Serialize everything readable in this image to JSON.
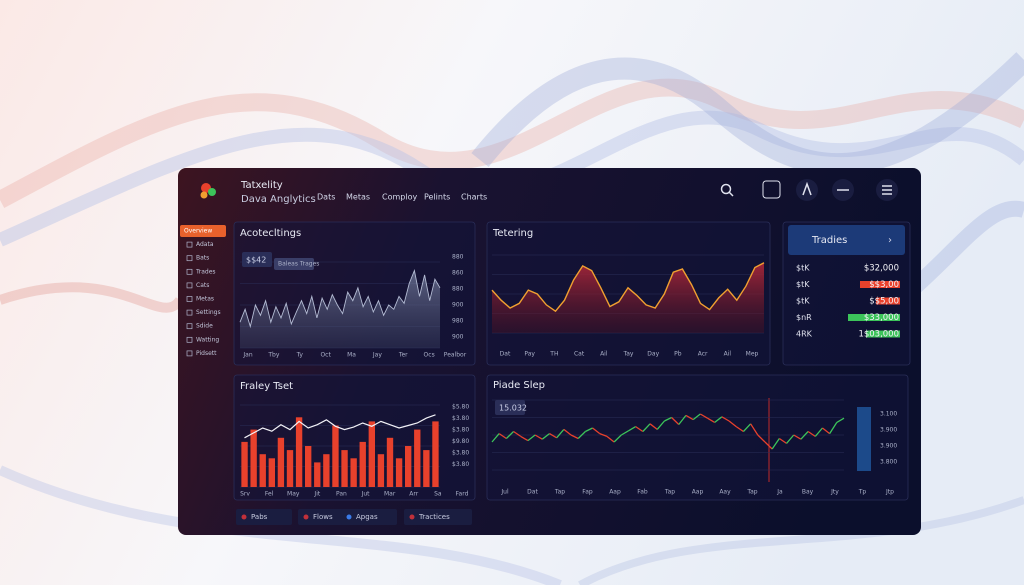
{
  "header": {
    "title": "Tatxelity",
    "subtitle": "Dava Anglytics",
    "nav": [
      "Dats",
      "Metas",
      "Comploy",
      "Pelints",
      "Charts"
    ]
  },
  "sidebar": [
    "Overview",
    "Adata",
    "Bats",
    "Trades",
    "Cats",
    "Metas",
    "Settings",
    "Sdide",
    "Watting",
    "Pidsett"
  ],
  "panels": [
    {
      "title": "Acotecltings",
      "badge": "$$42",
      "badge_note": "Baleas Trages",
      "chart": {
        "type": "area",
        "color": "#b4bcd4",
        "ylim": [
          0,
          100
        ],
        "values": [
          30,
          45,
          25,
          50,
          38,
          55,
          30,
          48,
          35,
          52,
          28,
          42,
          55,
          40,
          60,
          35,
          58,
          45,
          62,
          50,
          40,
          65,
          55,
          70,
          48,
          60,
          42,
          55,
          38,
          50,
          45,
          60,
          52,
          75,
          90,
          60,
          85,
          55,
          80,
          70
        ],
        "y_labels": [
          "880",
          "860",
          "880",
          "900",
          "980",
          "900"
        ],
        "x_labels": [
          "Jan",
          "Tby",
          "Ty",
          "Oct",
          "Ma",
          "Jay",
          "Ter",
          "Ocs",
          "Pealbor"
        ]
      }
    },
    {
      "title": "Tetering",
      "chart": {
        "type": "area",
        "color": "#f0a030",
        "ylim": [
          0,
          100
        ],
        "values": [
          55,
          42,
          32,
          38,
          55,
          50,
          36,
          28,
          42,
          68,
          86,
          80,
          58,
          34,
          40,
          58,
          48,
          36,
          32,
          50,
          78,
          82,
          62,
          38,
          30,
          45,
          56,
          42,
          60,
          84,
          90
        ],
        "x_labels": [
          "Dat",
          "Pay",
          "TH",
          "Cat",
          "Ail",
          "Tay",
          "Day",
          "Pb",
          "Acr",
          "Ail",
          "Mep"
        ]
      }
    },
    {
      "title": "Fraley Tset",
      "chart": {
        "type": "bar",
        "color": "#e8412c",
        "line_color": "#f2f2f7",
        "ylim": [
          0,
          100
        ],
        "values": [
          55,
          70,
          40,
          35,
          60,
          45,
          85,
          50,
          30,
          40,
          75,
          45,
          35,
          55,
          80,
          40,
          60,
          35,
          50,
          70,
          45,
          80
        ],
        "line": [
          60,
          66,
          72,
          68,
          76,
          70,
          80,
          72,
          76,
          82,
          74,
          70,
          73,
          78,
          74,
          80,
          76,
          72,
          75,
          78,
          84,
          88
        ],
        "y_labels": [
          "$5.80",
          "$3.80",
          "$3.80",
          "$9.80",
          "$3.80",
          "$3.80"
        ],
        "x_labels": [
          "Srv",
          "Fel",
          "May",
          "Jit",
          "Pan",
          "Jut",
          "Mar",
          "Arr",
          "Sa",
          "Fard"
        ]
      }
    },
    {
      "title": "Piade Slep",
      "badge": "15.032",
      "chart": {
        "type": "line",
        "up_color": "#3cc45a",
        "down_color": "#e8412c",
        "ylim": [
          0,
          100
        ],
        "values": [
          40,
          52,
          45,
          55,
          48,
          42,
          50,
          44,
          52,
          46,
          58,
          50,
          45,
          55,
          60,
          52,
          48,
          40,
          50,
          56,
          62,
          55,
          66,
          58,
          70,
          75,
          65,
          78,
          72,
          80,
          74,
          68,
          76,
          70,
          62,
          55,
          66,
          50,
          40,
          30,
          45,
          38,
          50,
          44,
          55,
          48,
          60,
          52,
          68,
          74
        ],
        "y_labels": [
          "3.100",
          "3.900",
          "3.900",
          "3.800"
        ],
        "x_labels": [
          "Jul",
          "Dat",
          "Tap",
          "Fap",
          "Aap",
          "Fab",
          "Tap",
          "Aap",
          "Aay",
          "Tap",
          "Ja",
          "Bay",
          "Jty",
          "Tp",
          "Jtp"
        ]
      }
    }
  ],
  "trades": {
    "title": "Tradies",
    "rows": [
      {
        "label": "$tK",
        "value": "$32,000",
        "bar": 0,
        "color": "#e8412c"
      },
      {
        "label": "$tK",
        "value": "$$3,00",
        "bar": 40,
        "color": "#e8412c"
      },
      {
        "label": "$tK",
        "value": "$$5,00",
        "bar": 24,
        "color": "#e8412c"
      },
      {
        "label": "$nR",
        "value": "$33,000",
        "bar": 52,
        "color": "#3cc45a"
      },
      {
        "label": "4RK",
        "value": "1$03,000",
        "bar": 34,
        "color": "#3cc45a"
      }
    ]
  },
  "tabs": [
    "Pabs",
    "Flows",
    "Apgas",
    "Tractices"
  ]
}
